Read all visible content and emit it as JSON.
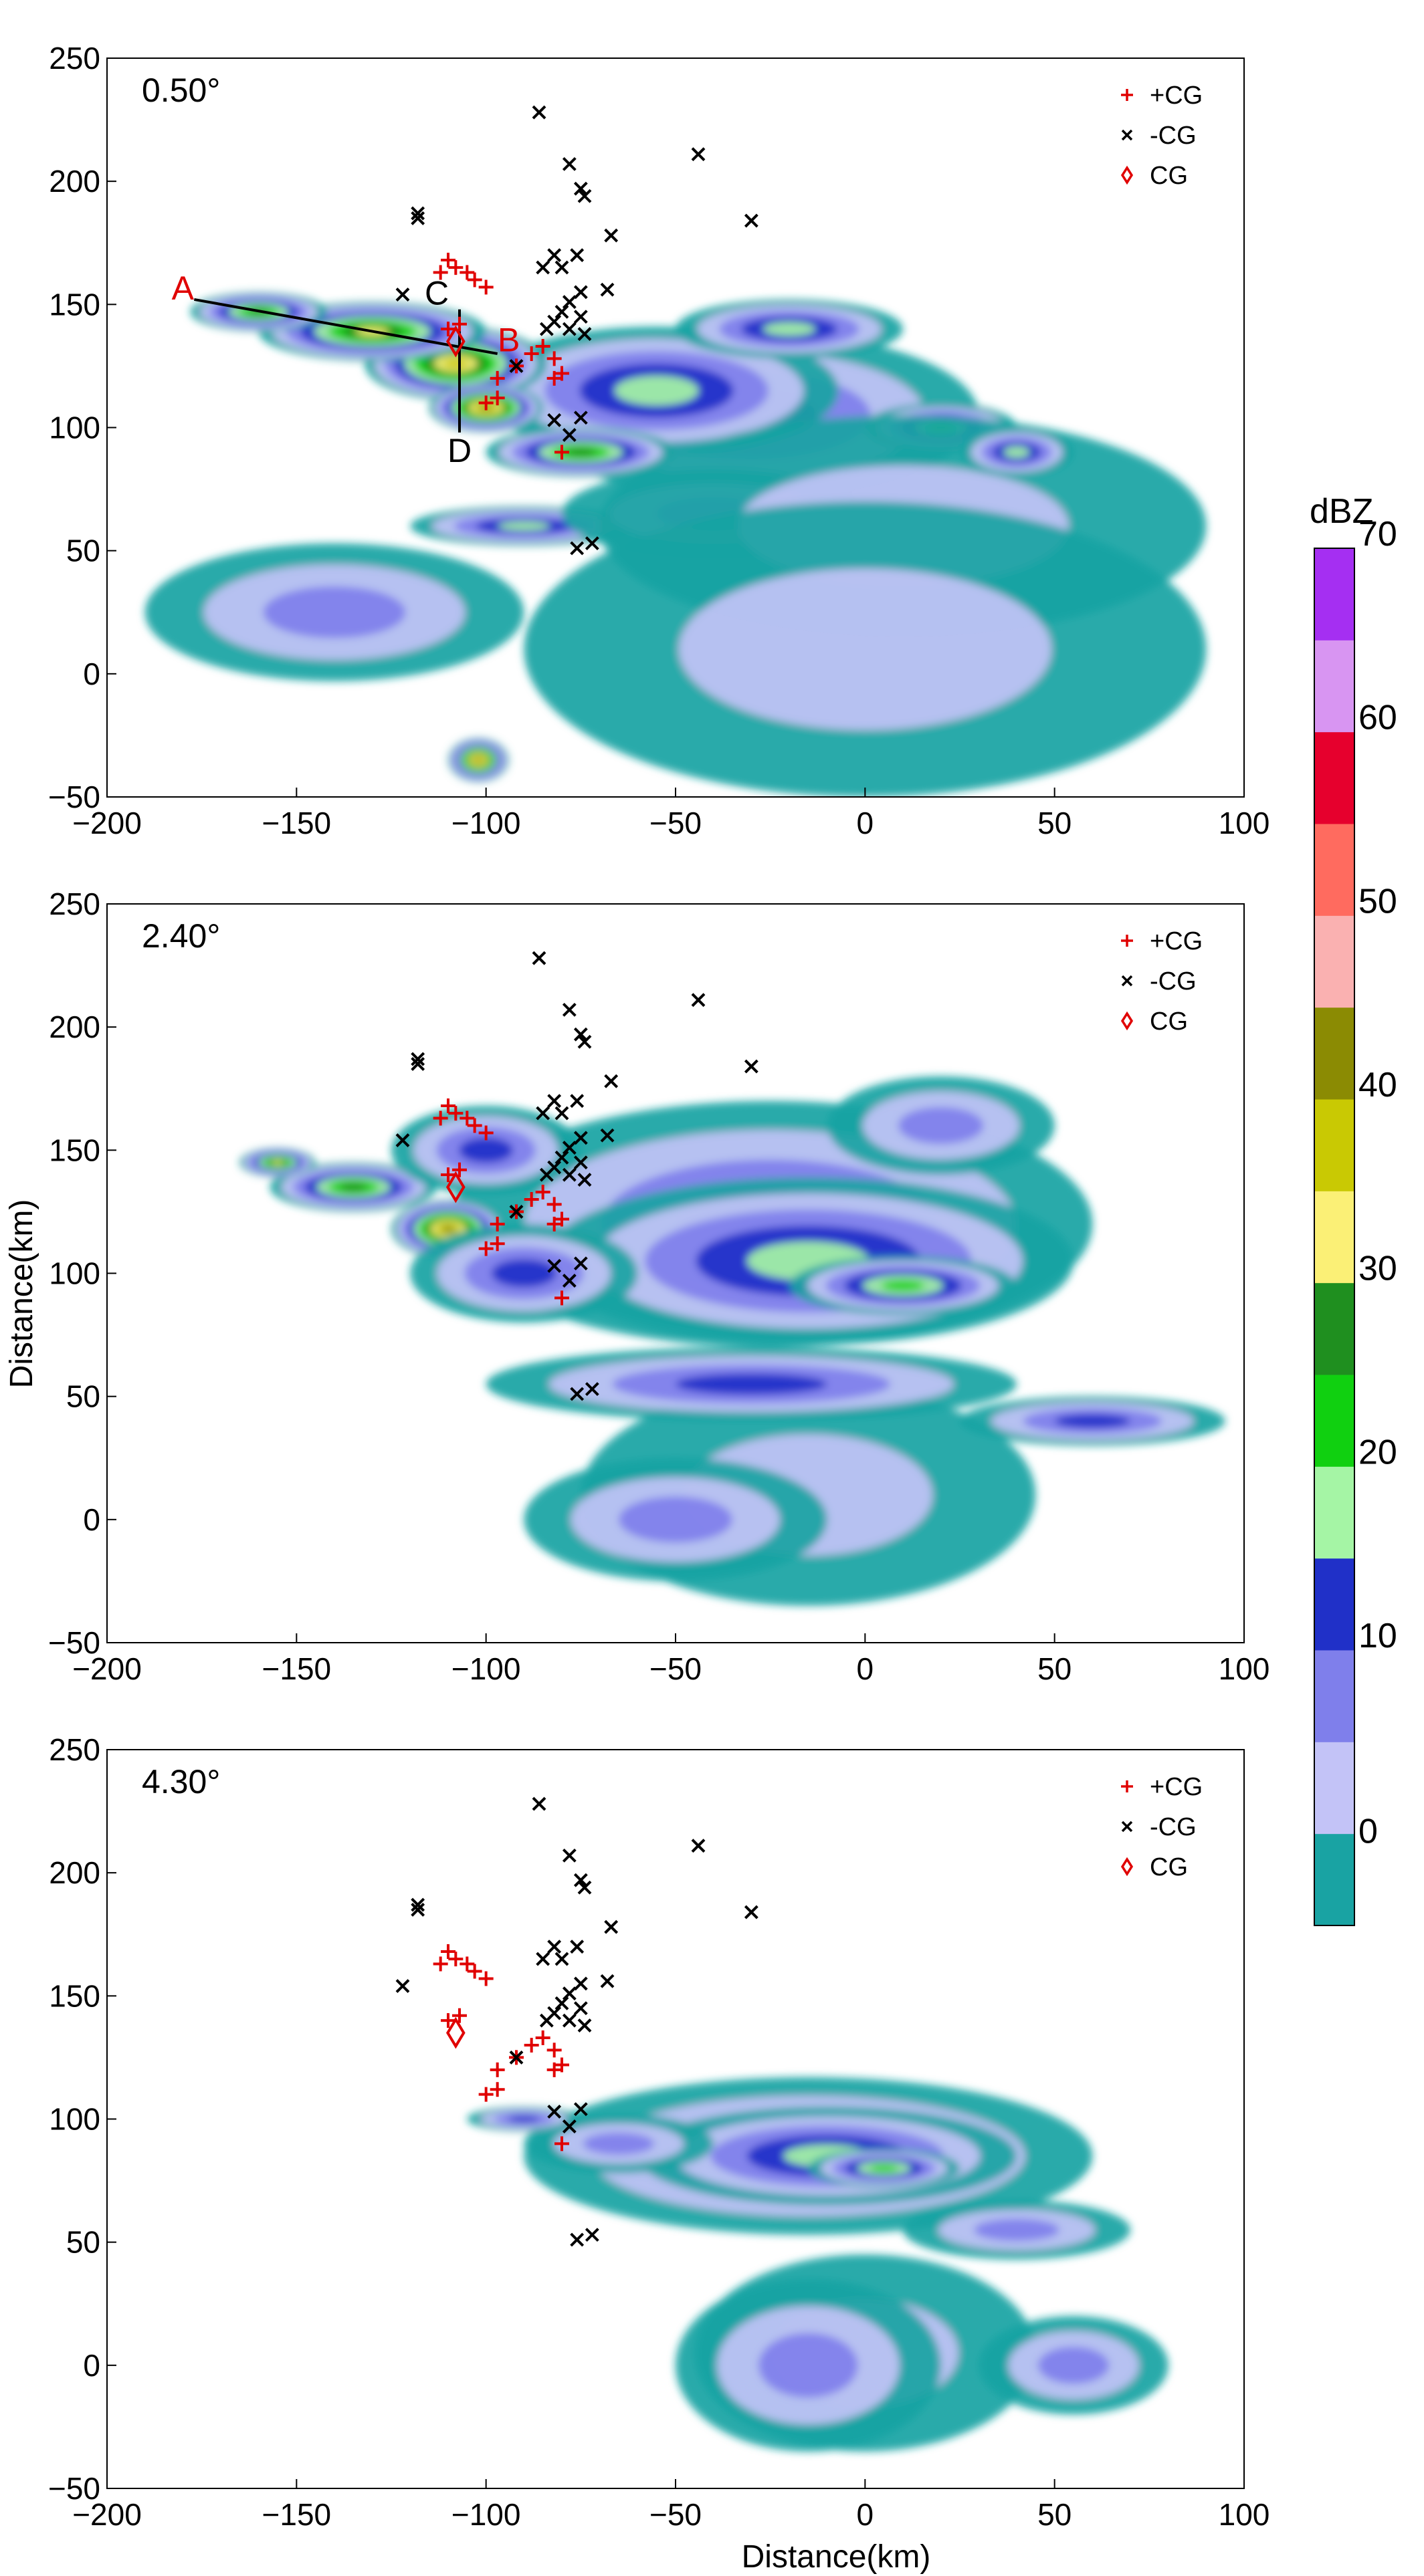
{
  "chart_data": {
    "type": "heatmap",
    "ylabel": "Distance(km)",
    "xlabel": "Distance(km)",
    "xlim": [
      -200,
      100
    ],
    "ylim": [
      -50,
      250
    ],
    "x_ticks": [
      "−200",
      "−150",
      "−100",
      "−50",
      "0",
      "50",
      "100"
    ],
    "y_ticks": [
      "−50",
      "0",
      "50",
      "100",
      "150",
      "200",
      "250"
    ],
    "legend": [
      "+CG",
      "-CG",
      "CG"
    ],
    "legend_colors": {
      "pos_cg": "#e00000",
      "neg_cg": "#000000",
      "cg": "#e00000"
    },
    "colorbar": {
      "title": "dBZ",
      "labels": [
        "0",
        "10",
        "20",
        "30",
        "40",
        "50",
        "60",
        "70"
      ],
      "colors": [
        "#19a3a3",
        "#c3c3f7",
        "#7f7feb",
        "#2030c8",
        "#a5f5a5",
        "#10d010",
        "#1f8f1f",
        "#fbf076",
        "#c9c903",
        "#8b8b03",
        "#fab1b1",
        "#ff6b5f",
        "#e6002d",
        "#d895f2",
        "#a52ff2"
      ]
    },
    "panels": [
      {
        "label": "0.50°",
        "show_section_lines": true,
        "section_labels": [
          "A",
          "B",
          "C",
          "D"
        ],
        "section_lines": [
          {
            "from": [
              -177,
              152
            ],
            "to": [
              -97,
              130
            ]
          },
          {
            "from": [
              -107,
              148
            ],
            "to": [
              -107,
              98
            ]
          }
        ],
        "echo_cells": [
          [
            -30,
            105,
            60,
            34,
            3
          ],
          [
            -55,
            115,
            48,
            26,
            4
          ],
          [
            -108,
            126,
            24,
            15,
            8
          ],
          [
            -130,
            139,
            30,
            12,
            7
          ],
          [
            -160,
            147,
            18,
            8,
            6
          ],
          [
            -100,
            108,
            15,
            10,
            9
          ],
          [
            -75,
            90,
            25,
            10,
            6
          ],
          [
            -90,
            60,
            30,
            8,
            4
          ],
          [
            -40,
            65,
            40,
            18,
            2
          ],
          [
            20,
            100,
            20,
            10,
            5
          ],
          [
            -102,
            -35,
            8,
            9,
            9
          ],
          [
            10,
            60,
            80,
            45,
            1
          ],
          [
            0,
            10,
            90,
            60,
            1
          ],
          [
            -140,
            25,
            50,
            28,
            2
          ],
          [
            -20,
            140,
            30,
            12,
            4
          ],
          [
            40,
            90,
            15,
            10,
            4
          ]
        ]
      },
      {
        "label": "2.40°",
        "show_section_lines": false,
        "echo_cells": [
          [
            -25,
            120,
            85,
            50,
            3
          ],
          [
            -15,
            105,
            70,
            34,
            4
          ],
          [
            10,
            95,
            30,
            12,
            5
          ],
          [
            -110,
            118,
            15,
            12,
            9
          ],
          [
            -135,
            135,
            22,
            10,
            6
          ],
          [
            -155,
            145,
            10,
            6,
            7
          ],
          [
            -100,
            150,
            25,
            18,
            3
          ],
          [
            -90,
            100,
            30,
            20,
            3
          ],
          [
            -15,
            10,
            60,
            45,
            1
          ],
          [
            60,
            40,
            35,
            10,
            3
          ],
          [
            -30,
            55,
            70,
            15,
            3
          ],
          [
            20,
            160,
            30,
            20,
            2
          ],
          [
            -50,
            0,
            40,
            25,
            2
          ]
        ]
      },
      {
        "label": "4.30°",
        "show_section_lines": false,
        "echo_cells": [
          [
            -15,
            85,
            75,
            32,
            3
          ],
          [
            -10,
            85,
            50,
            20,
            4
          ],
          [
            5,
            80,
            20,
            8,
            5
          ],
          [
            -65,
            90,
            25,
            12,
            2
          ],
          [
            0,
            5,
            45,
            40,
            1
          ],
          [
            -15,
            0,
            35,
            35,
            2
          ],
          [
            55,
            0,
            25,
            20,
            2
          ],
          [
            40,
            55,
            30,
            12,
            2
          ],
          [
            -90,
            100,
            15,
            5,
            3
          ]
        ]
      }
    ],
    "lightning": {
      "pos_cg": [
        [
          -110,
          168
        ],
        [
          -108,
          165
        ],
        [
          -105,
          163
        ],
        [
          -103,
          160
        ],
        [
          -100,
          157
        ],
        [
          -112,
          163
        ],
        [
          -110,
          140
        ],
        [
          -107,
          142
        ],
        [
          -97,
          120
        ],
        [
          -100,
          110
        ],
        [
          -97,
          112
        ],
        [
          -92,
          125
        ],
        [
          -88,
          130
        ],
        [
          -85,
          133
        ],
        [
          -82,
          128
        ],
        [
          -80,
          122
        ],
        [
          -82,
          120
        ],
        [
          -80,
          90
        ]
      ],
      "neg_cg": [
        [
          -86,
          228
        ],
        [
          -78,
          207
        ],
        [
          -75,
          197
        ],
        [
          -74,
          194
        ],
        [
          -67,
          178
        ],
        [
          -44,
          211
        ],
        [
          -30,
          184
        ],
        [
          -118,
          187
        ],
        [
          -118,
          185
        ],
        [
          -85,
          165
        ],
        [
          -80,
          165
        ],
        [
          -76,
          170
        ],
        [
          -82,
          170
        ],
        [
          -75,
          155
        ],
        [
          -68,
          156
        ],
        [
          -78,
          151
        ],
        [
          -80,
          147
        ],
        [
          -82,
          143
        ],
        [
          -78,
          140
        ],
        [
          -75,
          145
        ],
        [
          -74,
          138
        ],
        [
          -84,
          140
        ],
        [
          -122,
          154
        ],
        [
          -92,
          125
        ],
        [
          -82,
          103
        ],
        [
          -78,
          97
        ],
        [
          -75,
          104
        ],
        [
          -76,
          51
        ],
        [
          -72,
          53
        ]
      ],
      "cg": [
        [
          -108,
          135
        ]
      ]
    }
  }
}
